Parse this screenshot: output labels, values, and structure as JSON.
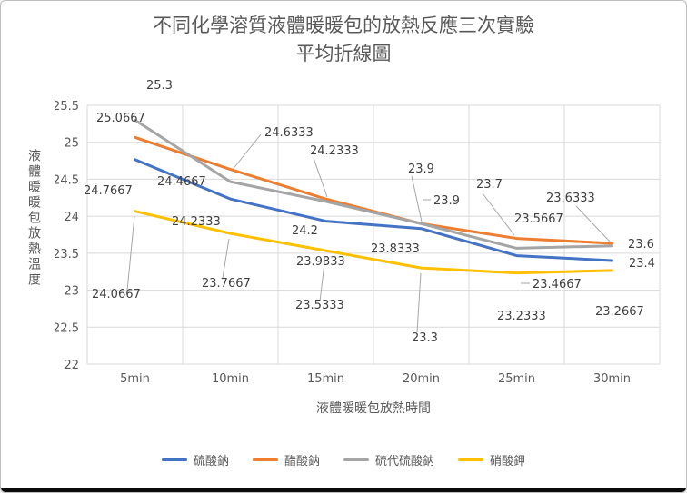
{
  "chart_data": {
    "type": "line",
    "title_lines": [
      "不同化學溶質液體暖暖包的放熱反應三次實驗",
      "平均折線圖"
    ],
    "xlabel": "液體暖暖包放熱時間",
    "ylabel": "液體暖暖包放熱溫度",
    "categories": [
      "5min",
      "10min",
      "15min",
      "20min",
      "25min",
      "30min"
    ],
    "yticks": [
      "22",
      "22.5",
      "23",
      "23.5",
      "24",
      "24.5",
      "25",
      "25.5"
    ],
    "ylim": [
      22,
      25.5
    ],
    "grid": true,
    "legend_position": "bottom",
    "data_labels": true,
    "text_color": "#595959",
    "data_label_color": "#404040",
    "gridline_color": "#D9D9D9",
    "leader_line_color": "#A6A6A6",
    "series": [
      {
        "name": "硫酸鈉",
        "color": "#4472C4",
        "values": [
          24.7667,
          24.2333,
          23.9333,
          23.8333,
          23.4667,
          23.4
        ]
      },
      {
        "name": "醋酸鈉",
        "color": "#ED7D31",
        "values": [
          25.0667,
          24.6333,
          24.2333,
          23.9,
          23.7,
          23.6333
        ]
      },
      {
        "name": "硫代硫酸鈉",
        "color": "#A5A5A5",
        "values": [
          25.3,
          24.4667,
          24.2,
          23.9,
          23.5667,
          23.6
        ]
      },
      {
        "name": "硝酸鉀",
        "color": "#FFC000",
        "values": [
          24.0667,
          23.7667,
          23.5333,
          23.3,
          23.2333,
          23.2667
        ]
      }
    ]
  }
}
